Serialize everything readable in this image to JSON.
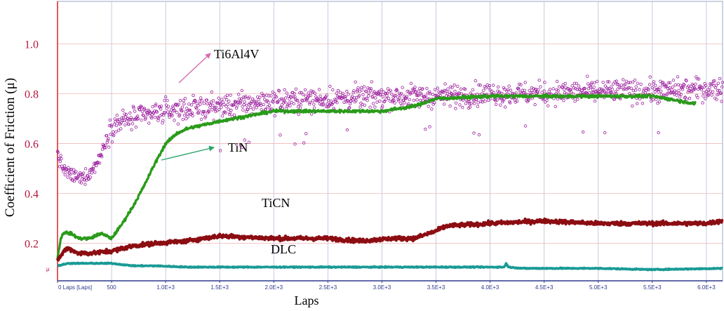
{
  "chart_data": {
    "type": "scatter",
    "title": "",
    "xlabel": "Laps",
    "ylabel": "Coefficient of Friction (μ)",
    "x_unit_label": "0 Laps [Laps]",
    "y_unit_label": "μ",
    "xlim": [
      0,
      6150
    ],
    "ylim": [
      0.05,
      1.17
    ],
    "x_ticks": [
      0,
      500,
      1000,
      1500,
      2000,
      2500,
      3000,
      3500,
      4000,
      4500,
      5000,
      5500,
      6000
    ],
    "x_tick_labels": [
      "500",
      "1.0E+3",
      "1.5E+3",
      "2.0E+3",
      "2.5E+3",
      "3.0E+3",
      "3.5E+3",
      "4.0E+3",
      "4.5E+3",
      "5.0E+3",
      "5.5E+3",
      "6.0E+3"
    ],
    "y_ticks": [
      0.2,
      0.4,
      0.6,
      0.8,
      1.0
    ],
    "y_tick_labels": [
      "0.2",
      "0.4",
      "0.6",
      "0.8",
      "1.0"
    ],
    "grid": true,
    "series": [
      {
        "name": "Ti6Al4V",
        "color": "#9b1f9e",
        "marker": "open-circle",
        "spread": 0.045,
        "x": [
          0,
          50,
          100,
          200,
          300,
          400,
          450,
          500,
          600,
          800,
          1000,
          1200,
          1500,
          2000,
          2500,
          3000,
          3500,
          4000,
          4500,
          5000,
          5500,
          6000,
          6150
        ],
        "y": [
          0.56,
          0.5,
          0.48,
          0.46,
          0.48,
          0.55,
          0.62,
          0.67,
          0.69,
          0.71,
          0.73,
          0.74,
          0.75,
          0.77,
          0.78,
          0.79,
          0.79,
          0.8,
          0.8,
          0.81,
          0.81,
          0.82,
          0.82
        ]
      },
      {
        "name": "TiN",
        "color": "#2a9a1a",
        "marker": "line",
        "x": [
          0,
          30,
          60,
          120,
          200,
          300,
          400,
          450,
          500,
          600,
          700,
          800,
          900,
          1000,
          1100,
          1200,
          1500,
          2000,
          2500,
          3000,
          3300,
          3500,
          4000,
          4500,
          5000,
          5500,
          5900
        ],
        "y": [
          0.14,
          0.22,
          0.245,
          0.24,
          0.22,
          0.22,
          0.24,
          0.23,
          0.22,
          0.28,
          0.35,
          0.43,
          0.52,
          0.6,
          0.64,
          0.66,
          0.69,
          0.73,
          0.73,
          0.73,
          0.75,
          0.78,
          0.79,
          0.79,
          0.79,
          0.79,
          0.76
        ]
      },
      {
        "name": "TiCN",
        "color": "#8b0d12",
        "marker": "line",
        "x": [
          0,
          30,
          60,
          100,
          200,
          300,
          500,
          600,
          700,
          900,
          1200,
          1500,
          2000,
          2500,
          2800,
          3100,
          3300,
          3500,
          3600,
          4000,
          4500,
          5000,
          5500,
          6000,
          6150
        ],
        "y": [
          0.13,
          0.15,
          0.17,
          0.18,
          0.16,
          0.16,
          0.17,
          0.18,
          0.19,
          0.2,
          0.21,
          0.23,
          0.22,
          0.22,
          0.21,
          0.22,
          0.22,
          0.25,
          0.27,
          0.28,
          0.29,
          0.28,
          0.28,
          0.28,
          0.29
        ]
      },
      {
        "name": "DLC",
        "color": "#1a9a96",
        "marker": "line",
        "x": [
          0,
          100,
          300,
          500,
          700,
          900,
          1200,
          2000,
          3000,
          4000,
          4130,
          4150,
          4170,
          4300,
          5000,
          5500,
          6150
        ],
        "y": [
          0.11,
          0.12,
          0.12,
          0.12,
          0.11,
          0.11,
          0.105,
          0.105,
          0.105,
          0.105,
          0.105,
          0.12,
          0.105,
          0.1,
          0.1,
          0.095,
          0.1
        ]
      }
    ],
    "annotations": [
      {
        "text": "Ti6Al4V",
        "points_to": "Ti6Al4V"
      },
      {
        "text": "TiN",
        "points_to": "TiN"
      },
      {
        "text": "TiCN",
        "points_to": "TiCN"
      },
      {
        "text": "DLC",
        "points_to": "DLC"
      }
    ]
  }
}
